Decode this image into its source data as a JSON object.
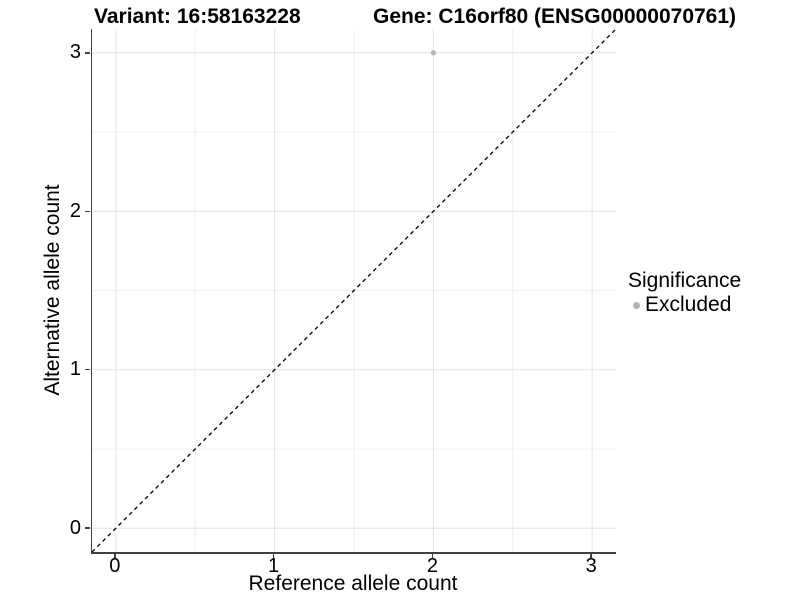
{
  "titles": {
    "variant": "Variant: 16:58163228",
    "gene": "Gene: C16orf80 (ENSG00000070761)"
  },
  "axes": {
    "x_label": "Reference allele count",
    "y_label": "Alternative allele count"
  },
  "legend": {
    "title": "Significance",
    "items": [
      {
        "label": "Excluded",
        "color": "#b3b3b3"
      }
    ]
  },
  "colors": {
    "grid_major": "#e3e3e3",
    "grid_minor": "#f0f0f0",
    "axis_line": "#404040",
    "reference_line": "#000000",
    "excluded_point": "#b3b3b3"
  },
  "chart_data": {
    "type": "scatter",
    "title": "Variant: 16:58163228 | Gene: C16orf80 (ENSG00000070761)",
    "xlabel": "Reference allele count",
    "ylabel": "Alternative allele count",
    "xlim": [
      -0.15,
      3.15
    ],
    "ylim": [
      -0.15,
      3.15
    ],
    "x_ticks": [
      0,
      1,
      2,
      3
    ],
    "y_ticks": [
      0,
      1,
      2,
      3
    ],
    "x_minor_ticks": [
      0.5,
      1.5,
      2.5
    ],
    "y_minor_ticks": [
      0.5,
      1.5,
      2.5
    ],
    "grid": "major and minor gridlines, white background",
    "legend_position": "right",
    "reference_line": {
      "slope": 1,
      "intercept": 0,
      "style": "dashed",
      "color": "#000000"
    },
    "series": [
      {
        "name": "Excluded",
        "color": "#b3b3b3",
        "point_radius": 2.6,
        "points": [
          [
            2,
            3
          ]
        ]
      }
    ]
  }
}
